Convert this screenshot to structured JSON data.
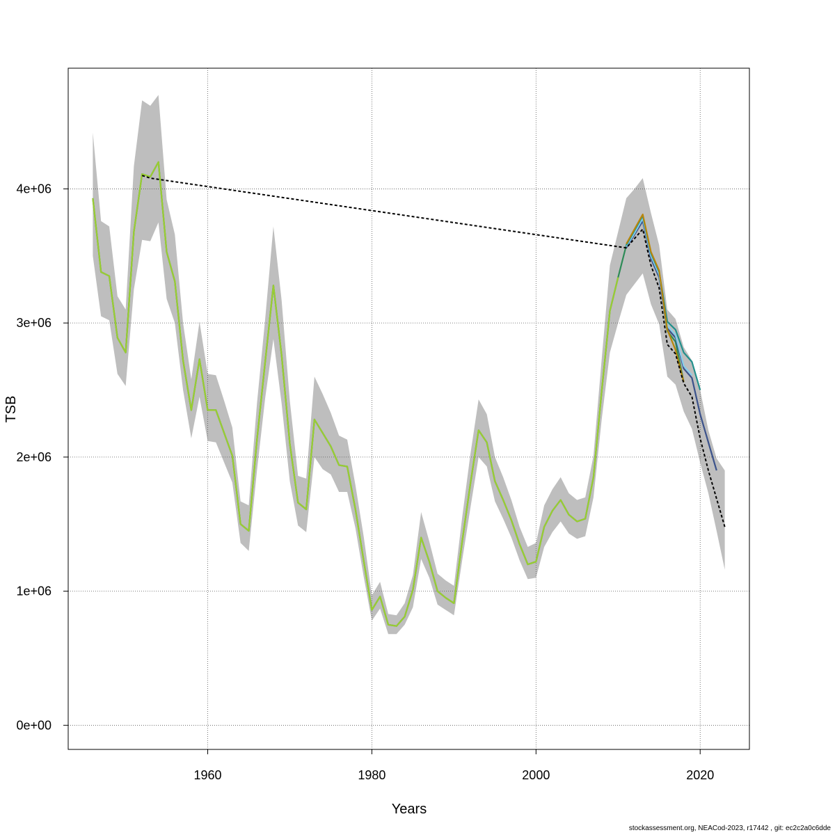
{
  "chart_data": {
    "type": "line",
    "title": "",
    "xlabel": "Years",
    "ylabel": "TSB",
    "xlim": [
      1943,
      2026
    ],
    "ylim": [
      -180000,
      4900000
    ],
    "x_ticks": [
      1960,
      1980,
      2000,
      2020
    ],
    "x_tick_labels": [
      "1960",
      "1980",
      "2000",
      "2020"
    ],
    "y_ticks": [
      0,
      1000000,
      2000000,
      3000000,
      4000000
    ],
    "y_tick_labels": [
      "0e+00",
      "1e+06",
      "2e+06",
      "3e+06",
      "4e+06"
    ],
    "grid": true,
    "legend": "none",
    "confidence_band": {
      "x": [
        1946,
        1947,
        1948,
        1949,
        1950,
        1951,
        1952,
        1953,
        1954,
        1955,
        1956,
        1957,
        1958,
        1959,
        1960,
        1961,
        1962,
        1963,
        1964,
        1965,
        1966,
        1967,
        1968,
        1969,
        1970,
        1971,
        1972,
        1973,
        1974,
        1975,
        1976,
        1977,
        1978,
        1979,
        1980,
        1981,
        1982,
        1983,
        1984,
        1985,
        1986,
        1987,
        1988,
        1989,
        1990,
        1991,
        1992,
        1993,
        1994,
        1995,
        1996,
        1997,
        1998,
        1999,
        2000,
        2001,
        2002,
        2003,
        2004,
        2005,
        2006,
        2007,
        2008,
        2009,
        2010,
        2011,
        2012,
        2013,
        2014,
        2015,
        2016,
        2017,
        2018,
        2019,
        2020,
        2021,
        2022,
        2023
      ],
      "lower": [
        3500000,
        3050000,
        3020000,
        2620000,
        2530000,
        3250000,
        3620000,
        3610000,
        3750000,
        3180000,
        3000000,
        2500000,
        2140000,
        2450000,
        2120000,
        2110000,
        1960000,
        1810000,
        1360000,
        1300000,
        1900000,
        2440000,
        2880000,
        2400000,
        1820000,
        1490000,
        1440000,
        2000000,
        1910000,
        1870000,
        1740000,
        1740000,
        1470000,
        1110000,
        780000,
        870000,
        680000,
        680000,
        750000,
        880000,
        1240000,
        1100000,
        900000,
        860000,
        820000,
        1230000,
        1620000,
        2000000,
        1930000,
        1670000,
        1540000,
        1400000,
        1230000,
        1090000,
        1100000,
        1330000,
        1440000,
        1520000,
        1430000,
        1390000,
        1410000,
        1700000,
        2280000,
        2780000,
        3000000,
        3210000,
        3290000,
        3370000,
        3140000,
        2990000,
        2600000,
        2540000,
        2340000,
        2210000,
        1960000,
        1730000,
        1450000,
        1160000
      ],
      "upper": [
        4420000,
        3760000,
        3720000,
        3200000,
        3100000,
        4170000,
        4660000,
        4620000,
        4700000,
        3920000,
        3660000,
        3000000,
        2580000,
        3010000,
        2620000,
        2610000,
        2420000,
        2220000,
        1670000,
        1640000,
        2400000,
        3030000,
        3720000,
        3170000,
        2420000,
        1860000,
        1840000,
        2600000,
        2470000,
        2330000,
        2160000,
        2130000,
        1790000,
        1410000,
        970000,
        1070000,
        830000,
        820000,
        910000,
        1120000,
        1590000,
        1370000,
        1130000,
        1080000,
        1040000,
        1550000,
        2020000,
        2430000,
        2320000,
        2000000,
        1850000,
        1680000,
        1480000,
        1330000,
        1360000,
        1640000,
        1760000,
        1850000,
        1730000,
        1680000,
        1700000,
        2010000,
        2730000,
        3430000,
        3680000,
        3930000,
        4000000,
        4080000,
        3820000,
        3580000,
        3100000,
        3030000,
        2820000,
        2720000,
        2500000,
        2200000,
        1990000,
        1900000
      ]
    },
    "series": [
      {
        "color": "#2e8b57",
        "x": [
          1946,
          1947,
          1948,
          1949,
          1950,
          1951,
          1952,
          1953,
          1954,
          1955,
          1956,
          1957,
          1958,
          1959,
          1960,
          1961,
          1962,
          1963,
          1964,
          1965,
          1966,
          1967,
          1968,
          1969,
          1970,
          1971,
          1972,
          1973,
          1974,
          1975,
          1976,
          1977,
          1978,
          1979,
          1980,
          1981,
          1982,
          1983,
          1984,
          1985,
          1986,
          1987,
          1988,
          1989,
          1990,
          1991,
          1992,
          1993,
          1994,
          1995,
          1996,
          1997,
          1998,
          1999,
          2000,
          2001,
          2002,
          2003,
          2004,
          2005,
          2006,
          2007,
          2008,
          2009,
          2010,
          2011,
          2012,
          2013,
          2014,
          2015,
          2016,
          2017,
          2018
        ],
        "values": [
          3930000,
          3380000,
          3350000,
          2890000,
          2780000,
          3680000,
          4110000,
          4090000,
          4200000,
          3530000,
          3310000,
          2720000,
          2350000,
          2730000,
          2350000,
          2350000,
          2180000,
          2010000,
          1500000,
          1450000,
          2130000,
          2710000,
          3280000,
          2760000,
          2100000,
          1660000,
          1610000,
          2280000,
          2180000,
          2080000,
          1940000,
          1930000,
          1610000,
          1230000,
          860000,
          960000,
          750000,
          740000,
          810000,
          1010000,
          1400000,
          1220000,
          1000000,
          950000,
          910000,
          1370000,
          1800000,
          2200000,
          2110000,
          1820000,
          1680000,
          1530000,
          1350000,
          1200000,
          1220000,
          1480000,
          1600000,
          1680000,
          1570000,
          1520000,
          1540000,
          1850000,
          2490000,
          3090000,
          3340000,
          3580000,
          3680000,
          3790000,
          3510000,
          3360000,
          2940000,
          2860000,
          2560000
        ]
      },
      {
        "color": "#3b528b",
        "x": [
          2011,
          2012,
          2013,
          2014,
          2015,
          2016,
          2017,
          2018,
          2019,
          2020,
          2021,
          2022
        ],
        "values": [
          3560000,
          3660000,
          3760000,
          3480000,
          3340000,
          2960000,
          2890000,
          2660000,
          2590000,
          2320000,
          2110000,
          1900000
        ]
      },
      {
        "color": "#87ceeb",
        "x": [
          2011,
          2012,
          2013,
          2014,
          2015,
          2016,
          2017,
          2018,
          2019
        ],
        "values": [
          3570000,
          3670000,
          3780000,
          3500000,
          3360000,
          2980000,
          2910000,
          2680000,
          2610000
        ]
      },
      {
        "color": "#21908c",
        "x": [
          2011,
          2012,
          2013,
          2014,
          2015,
          2016,
          2017,
          2018,
          2019,
          2020
        ],
        "values": [
          3580000,
          3690000,
          3800000,
          3520000,
          3380000,
          3010000,
          2950000,
          2780000,
          2710000,
          2500000
        ]
      },
      {
        "color": "#b8860b",
        "x": [
          2011,
          2012,
          2013,
          2014,
          2015,
          2016,
          2017,
          2018
        ],
        "values": [
          3590000,
          3700000,
          3810000,
          3530000,
          3390000,
          2950000,
          2800000,
          2560000
        ]
      },
      {
        "color": "#9acd32",
        "x": [
          1946,
          1947,
          1948,
          1949,
          1950,
          1951,
          1952,
          1953,
          1954,
          1955,
          1956,
          1957,
          1958,
          1959,
          1960,
          1961,
          1962,
          1963,
          1964,
          1965,
          1966,
          1967,
          1968,
          1969,
          1970,
          1971,
          1972,
          1973,
          1974,
          1975,
          1976,
          1977,
          1978,
          1979,
          1980,
          1981,
          1982,
          1983,
          1984,
          1985,
          1986,
          1987,
          1988,
          1989,
          1990,
          1991,
          1992,
          1993,
          1994,
          1995,
          1996,
          1997,
          1998,
          1999,
          2000,
          2001,
          2002,
          2003,
          2004,
          2005,
          2006,
          2007,
          2008,
          2009,
          2010
        ],
        "values": [
          3930000,
          3380000,
          3350000,
          2890000,
          2780000,
          3680000,
          4110000,
          4090000,
          4200000,
          3530000,
          3310000,
          2720000,
          2350000,
          2730000,
          2350000,
          2350000,
          2180000,
          2010000,
          1500000,
          1450000,
          2130000,
          2710000,
          3280000,
          2760000,
          2100000,
          1660000,
          1610000,
          2280000,
          2180000,
          2080000,
          1940000,
          1930000,
          1610000,
          1230000,
          860000,
          960000,
          750000,
          740000,
          810000,
          1010000,
          1400000,
          1220000,
          1000000,
          950000,
          910000,
          1370000,
          1800000,
          2200000,
          2110000,
          1820000,
          1680000,
          1530000,
          1350000,
          1200000,
          1220000,
          1480000,
          1600000,
          1680000,
          1570000,
          1520000,
          1540000,
          1850000,
          2490000,
          3090000,
          3340000
        ]
      },
      {
        "color": "#000000",
        "dashed": true,
        "x": [
          1952,
          1953,
          2011,
          2012,
          2013,
          2014,
          2015,
          2016,
          2017,
          2018,
          2019,
          2020,
          2021,
          2022,
          2023
        ],
        "values": [
          4100000,
          4080000,
          3560000,
          3630000,
          3700000,
          3430000,
          3260000,
          2840000,
          2770000,
          2550000,
          2450000,
          2140000,
          1900000,
          1690000,
          1480000
        ]
      }
    ]
  },
  "footer": "stockassessment.org, NEACod-2023, r17442 , git: ec2c2a0c6dde"
}
